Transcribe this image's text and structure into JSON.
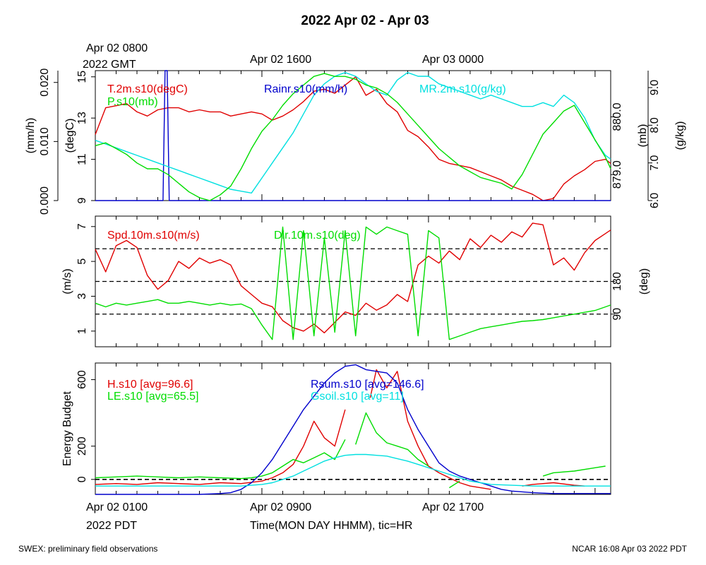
{
  "title": "2022 Apr 02 - Apr 03",
  "top_axis": {
    "labels": [
      "Apr 02 0800",
      "Apr 02 1600",
      "Apr 03 0000"
    ],
    "sublabel": "2022 GMT"
  },
  "bottom_axis": {
    "labels": [
      "Apr 02 0100",
      "Apr 02 0900",
      "Apr 02 1700"
    ],
    "sublabel": "2022 PDT",
    "xlabel": "Time(MON DAY HHMM), tic=HR"
  },
  "footer": {
    "left": "SWEX: preliminary field observations",
    "right": "NCAR 16:08 Apr 03 2022 PDT"
  },
  "colors": {
    "red": "#e00000",
    "green": "#00dd00",
    "blue": "#0000cc",
    "cyan": "#00e0e0",
    "black": "#000000"
  },
  "chart_data": [
    {
      "type": "line",
      "panel": "top",
      "x_unit": "hours since Apr 02 0000 PDT",
      "xlim": [
        1,
        25.75
      ],
      "axes": [
        {
          "label": "(mm/h)",
          "side": "left-outer",
          "ylim": [
            0,
            0.022
          ],
          "ticks": [
            "0.000",
            "0.010",
            "0.020"
          ],
          "tick_values": [
            0,
            0.01,
            0.02
          ]
        },
        {
          "label": "(degC)",
          "side": "left-inner",
          "ylim": [
            9,
            15.3
          ],
          "ticks": [
            "9",
            "11",
            "13",
            "15"
          ],
          "tick_values": [
            9,
            11,
            13,
            15
          ]
        },
        {
          "label": "(mb)",
          "side": "right-inner",
          "ylim": [
            878.55,
            880.8
          ],
          "ticks": [
            "879.0",
            "880.0"
          ],
          "tick_values": [
            879.0,
            880.0
          ]
        },
        {
          "label": "(g/kg)",
          "side": "right-outer",
          "ylim": [
            6.0,
            9.45
          ],
          "ticks": [
            "6.0",
            "7.0",
            "8.0",
            "9.0"
          ],
          "tick_values": [
            6.0,
            7.0,
            8.0,
            9.0
          ]
        }
      ],
      "series": [
        {
          "name": "T.2m.s10(degC)",
          "color": "red",
          "axis": 1,
          "x": [
            1,
            1.5,
            2,
            2.5,
            3,
            3.5,
            4,
            4.5,
            5,
            5.5,
            6,
            6.5,
            7,
            7.5,
            8,
            8.5,
            9,
            9.5,
            10,
            10.5,
            11,
            11.5,
            12,
            12.5,
            13,
            13.5,
            14,
            14.5,
            15,
            15.5,
            16,
            16.5,
            17,
            17.5,
            18,
            18.5,
            19,
            19.5,
            20,
            20.5,
            21,
            21.5,
            22,
            22.5,
            23,
            23.5,
            24,
            24.5,
            25,
            25.5,
            25.75
          ],
          "values": [
            12.2,
            13.5,
            13.6,
            13.7,
            13.3,
            13.1,
            13.4,
            13.5,
            13.5,
            13.3,
            13.4,
            13.3,
            13.3,
            13.1,
            13.2,
            13.3,
            13.2,
            12.9,
            13.1,
            13.4,
            13.8,
            14.3,
            14.4,
            14.2,
            14.6,
            15.0,
            14.1,
            14.4,
            13.7,
            13.3,
            12.4,
            12.1,
            11.6,
            11.0,
            10.8,
            10.7,
            10.6,
            10.4,
            10.2,
            10.0,
            9.7,
            9.5,
            9.3,
            9.0,
            9.1,
            9.8,
            10.2,
            10.5,
            10.9,
            11.0,
            10.8
          ]
        },
        {
          "name": "Rainr.s10(mm/h)",
          "color": "blue",
          "axis": 0,
          "x": [
            1,
            4.25,
            4.35,
            4.45,
            4.55,
            25.75
          ],
          "values": [
            0,
            0,
            0.022,
            0.022,
            0,
            0
          ]
        },
        {
          "name": "MR.2m.s10(g/kg)",
          "color": "cyan",
          "axis": 3,
          "x": [
            1,
            1.5,
            2,
            2.5,
            3,
            3.5,
            4,
            4.5,
            5,
            5.5,
            6,
            6.5,
            7,
            7.5,
            8,
            8.5,
            9,
            9.5,
            10,
            10.5,
            11,
            11.5,
            12,
            12.5,
            13,
            13.5,
            14,
            14.5,
            15,
            15.5,
            16,
            16.5,
            17,
            17.5,
            18,
            18.5,
            19,
            19.5,
            20,
            20.5,
            21,
            21.5,
            22,
            22.5,
            23,
            23.5,
            24,
            24.5,
            25,
            25.5,
            25.75
          ],
          "values": [
            7.6,
            7.5,
            7.4,
            7.3,
            7.2,
            7.1,
            7.0,
            6.9,
            6.8,
            6.7,
            6.6,
            6.5,
            6.4,
            6.3,
            6.25,
            6.2,
            6.6,
            7.0,
            7.4,
            7.8,
            8.3,
            8.8,
            9.1,
            9.3,
            9.4,
            9.3,
            9.1,
            8.9,
            8.8,
            9.2,
            9.4,
            9.3,
            9.3,
            9.1,
            9.0,
            8.9,
            8.8,
            8.7,
            8.8,
            8.7,
            8.6,
            8.5,
            8.5,
            8.6,
            8.5,
            8.8,
            8.6,
            8.2,
            7.6,
            7.2,
            7.1
          ]
        },
        {
          "name": "P.s10(mb)",
          "color": "green",
          "axis": 2,
          "x": [
            1,
            1.5,
            2,
            2.5,
            3,
            3.5,
            4,
            4.5,
            5,
            5.5,
            6,
            6.5,
            7,
            7.5,
            8,
            8.5,
            9,
            9.5,
            10,
            10.5,
            11,
            11.5,
            12,
            12.5,
            13,
            13.5,
            14,
            14.5,
            15,
            15.5,
            16,
            16.5,
            17,
            17.5,
            18,
            18.5,
            19,
            19.5,
            20,
            20.5,
            21,
            21.5,
            22,
            22.5,
            23,
            23.5,
            24,
            24.5,
            25,
            25.5,
            25.75
          ],
          "values": [
            879.5,
            879.55,
            879.45,
            879.35,
            879.2,
            879.1,
            879.1,
            879.0,
            878.85,
            878.7,
            878.6,
            878.55,
            878.65,
            878.8,
            879.1,
            879.45,
            879.75,
            879.95,
            880.2,
            880.4,
            880.55,
            880.7,
            880.75,
            880.7,
            880.7,
            880.65,
            880.55,
            880.5,
            880.4,
            880.25,
            880.05,
            879.85,
            879.65,
            879.45,
            879.3,
            879.15,
            879.05,
            878.95,
            878.9,
            878.85,
            878.75,
            879.0,
            879.35,
            879.7,
            879.9,
            880.1,
            880.2,
            879.9,
            879.6,
            879.3,
            879.1
          ]
        }
      ]
    },
    {
      "type": "line",
      "panel": "middle",
      "x_unit": "hours since Apr 02 0000 PDT",
      "xlim": [
        1,
        25.75
      ],
      "axes": [
        {
          "label": "(m/s)",
          "side": "left",
          "ylim": [
            0.1,
            7.6
          ],
          "ticks": [
            "1",
            "3",
            "5",
            "7"
          ],
          "tick_values": [
            1,
            3,
            5,
            7
          ]
        },
        {
          "label": "(deg)",
          "side": "right",
          "ylim": [
            0,
            360
          ],
          "ticks": [
            "90",
            "180"
          ],
          "tick_values": [
            90,
            180
          ]
        }
      ],
      "reference_lines_deg": [
        90,
        180,
        270
      ],
      "series": [
        {
          "name": "Spd.10m.s10(m/s)",
          "color": "red",
          "axis": 0,
          "x": [
            1,
            1.5,
            2,
            2.5,
            3,
            3.5,
            4,
            4.5,
            5,
            5.5,
            6,
            6.5,
            7,
            7.5,
            8,
            8.5,
            9,
            9.5,
            10,
            10.5,
            11,
            11.5,
            12,
            12.5,
            13,
            13.5,
            14,
            14.5,
            15,
            15.5,
            16,
            16.5,
            17,
            17.5,
            18,
            18.5,
            19,
            19.5,
            20,
            20.5,
            21,
            21.5,
            22,
            22.5,
            23,
            23.5,
            24,
            24.5,
            25,
            25.5,
            25.75
          ],
          "values": [
            5.7,
            4.4,
            5.9,
            6.2,
            5.8,
            4.2,
            3.4,
            3.9,
            5.0,
            4.6,
            5.2,
            4.9,
            5.1,
            4.8,
            3.6,
            3.1,
            2.6,
            2.4,
            1.6,
            1.2,
            1.0,
            1.4,
            0.9,
            1.5,
            2.1,
            1.9,
            2.6,
            2.2,
            2.5,
            3.1,
            2.7,
            4.8,
            5.3,
            4.9,
            5.6,
            5.1,
            6.3,
            5.8,
            6.5,
            6.1,
            6.7,
            6.4,
            7.2,
            7.1,
            4.8,
            5.2,
            4.5,
            5.5,
            6.2,
            6.6,
            6.8
          ]
        },
        {
          "name": "Dir.10m.s10(deg)",
          "color": "green",
          "axis": 1,
          "x": [
            1,
            1.5,
            2,
            2.5,
            3,
            3.5,
            4,
            4.5,
            5,
            5.5,
            6,
            6.5,
            7,
            7.5,
            8,
            8.5,
            9,
            9.5,
            10,
            10.5,
            11,
            11.5,
            12,
            12.5,
            13,
            13.5,
            14,
            14.5,
            15,
            15.5,
            16,
            16.5,
            17,
            17.5,
            18,
            18.5,
            19,
            19.5,
            20,
            20.5,
            21,
            21.5,
            22,
            22.5,
            23,
            23.5,
            24,
            24.5,
            25,
            25.5,
            25.75
          ],
          "values": [
            120,
            110,
            120,
            115,
            120,
            125,
            130,
            120,
            120,
            125,
            120,
            115,
            120,
            115,
            118,
            105,
            60,
            20,
            330,
            20,
            320,
            30,
            300,
            40,
            320,
            30,
            330,
            310,
            330,
            320,
            310,
            30,
            320,
            300,
            20,
            30,
            40,
            50,
            55,
            60,
            65,
            70,
            72,
            75,
            80,
            85,
            90,
            95,
            100,
            110,
            115
          ]
        }
      ]
    },
    {
      "type": "line",
      "panel": "bottom",
      "x_unit": "hours since Apr 02 0000 PDT",
      "xlim": [
        1,
        25.75
      ],
      "axes": [
        {
          "label": "Energy Budget",
          "side": "left",
          "ylim": [
            -90,
            700
          ],
          "ticks": [
            "0",
            "200",
            "600"
          ],
          "tick_values": [
            0,
            200,
            600
          ]
        }
      ],
      "reference_lines": [
        0
      ],
      "series": [
        {
          "name": "H.s10 [avg=96.6]",
          "color": "red",
          "axis": 0,
          "x": [
            1,
            2,
            3,
            4,
            5,
            6,
            7,
            8,
            9,
            9.5,
            10,
            10.5,
            11,
            11.5,
            12,
            12.5,
            13,
            null,
            14.2,
            14.5,
            15,
            15.5,
            16,
            16.5,
            17,
            17.5,
            18,
            18.5,
            19,
            19.5,
            20,
            null,
            21.5,
            22,
            23,
            24,
            24.5
          ],
          "values": [
            -30,
            -25,
            -30,
            -20,
            -25,
            -30,
            -20,
            -25,
            -10,
            10,
            40,
            90,
            200,
            350,
            250,
            200,
            420,
            null,
            490,
            660,
            550,
            650,
            350,
            200,
            80,
            40,
            10,
            -20,
            -40,
            -50,
            -60,
            null,
            -40,
            -30,
            -20,
            -35,
            -40
          ]
        },
        {
          "name": "LE.s10 [avg=65.5]",
          "color": "green",
          "axis": 0,
          "x": [
            1,
            2,
            3,
            4,
            5,
            6,
            7,
            8,
            8.5,
            9,
            9.5,
            10,
            10.5,
            11,
            11.5,
            12,
            12.5,
            13,
            null,
            13.5,
            14,
            14.5,
            15,
            15.5,
            16,
            16.5,
            17,
            null,
            18,
            18.5,
            null,
            22.5,
            23,
            24,
            25,
            25.5
          ],
          "values": [
            10,
            15,
            20,
            15,
            10,
            15,
            10,
            5,
            10,
            20,
            40,
            80,
            120,
            100,
            130,
            160,
            120,
            240,
            null,
            210,
            400,
            280,
            220,
            200,
            180,
            120,
            80,
            null,
            -50,
            -10,
            null,
            20,
            40,
            50,
            70,
            80
          ]
        },
        {
          "name": "Rsum.s10 [avg=146.6]",
          "color": "blue",
          "axis": 0,
          "x": [
            1,
            2,
            3,
            4,
            5,
            6,
            7,
            7.5,
            8,
            8.5,
            9,
            9.5,
            10,
            10.5,
            11,
            11.5,
            12,
            12.5,
            13,
            13.5,
            14,
            14.5,
            15,
            15.5,
            16,
            16.5,
            17,
            17.5,
            18,
            18.5,
            19,
            19.5,
            20,
            20.5,
            21,
            22,
            23,
            24,
            25,
            25.75
          ],
          "values": [
            -90,
            -90,
            -90,
            -90,
            -90,
            -90,
            -85,
            -80,
            -60,
            -20,
            40,
            120,
            220,
            320,
            420,
            500,
            580,
            640,
            680,
            690,
            660,
            650,
            640,
            580,
            420,
            300,
            200,
            100,
            50,
            20,
            0,
            -20,
            -40,
            -60,
            -70,
            -80,
            -85,
            -85,
            -85,
            -85
          ]
        },
        {
          "name": "Gsoil.s10 [avg=11]",
          "color": "cyan",
          "axis": 0,
          "x": [
            1,
            2,
            3,
            4,
            5,
            6,
            7,
            8,
            9,
            9.5,
            10,
            10.5,
            11,
            11.5,
            12,
            12.5,
            13,
            13.5,
            14,
            14.5,
            15,
            15.5,
            16,
            16.5,
            17,
            17.5,
            18,
            18.5,
            19,
            19.5,
            20,
            21,
            22,
            23,
            24,
            25,
            25.75
          ],
          "values": [
            -40,
            -40,
            -40,
            -40,
            -40,
            -40,
            -40,
            -40,
            -30,
            -20,
            0,
            20,
            50,
            80,
            110,
            130,
            145,
            150,
            150,
            145,
            140,
            125,
            110,
            90,
            70,
            50,
            30,
            10,
            -10,
            -20,
            -30,
            -35,
            -40,
            -40,
            -40,
            -40,
            -40
          ]
        }
      ]
    }
  ]
}
